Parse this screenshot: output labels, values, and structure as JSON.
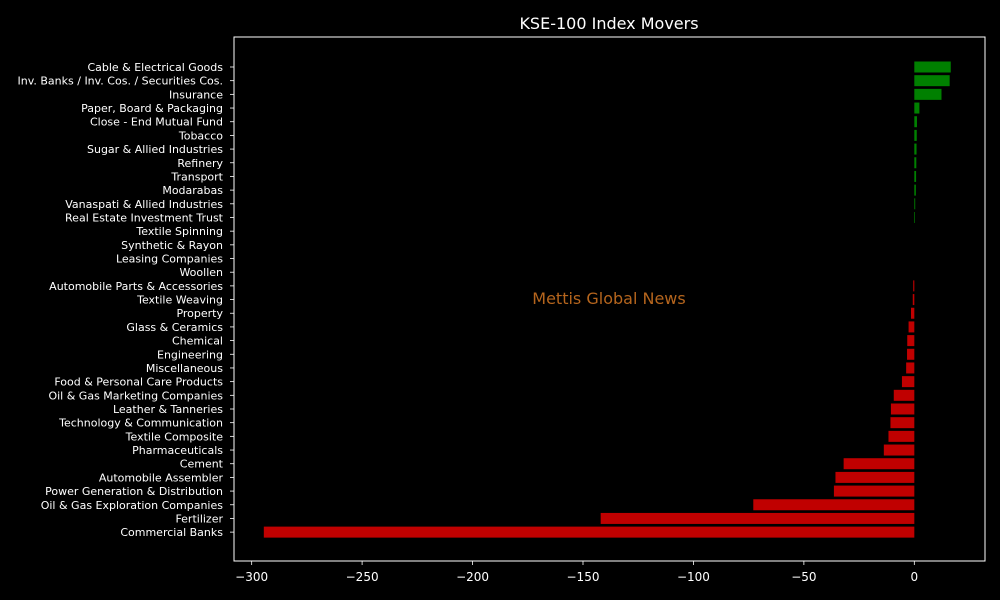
{
  "chart_data": {
    "type": "bar",
    "orientation": "horizontal",
    "title": "KSE-100 Index Movers",
    "watermark": "Mettis Global News",
    "xlim": [
      -308,
      32
    ],
    "xticks": [
      -300,
      -250,
      -200,
      -150,
      -100,
      -50,
      0
    ],
    "xtick_labels": [
      "−300",
      "−250",
      "−200",
      "−150",
      "−100",
      "−50",
      "0"
    ],
    "grid": false,
    "colors": {
      "positive": "#008000",
      "negative": "#c00000",
      "background": "#000000",
      "axes": "#ffffff",
      "watermark": "#b5651d"
    },
    "categories": [
      "Cable & Electrical Goods",
      "Inv. Banks / Inv. Cos. / Securities Cos.",
      "Insurance",
      "Paper, Board & Packaging",
      "Close - End Mutual Fund",
      "Tobacco",
      "Sugar & Allied Industries",
      "Refinery",
      "Transport",
      "Modarabas",
      "Vanaspati & Allied Industries",
      "Real Estate Investment Trust",
      "Textile Spinning",
      "Synthetic & Rayon",
      "Leasing Companies",
      "Woollen",
      "Automobile Parts & Accessories",
      "Textile Weaving",
      "Property",
      "Glass & Ceramics",
      "Chemical",
      "Engineering",
      "Miscellaneous",
      "Food & Personal Care Products",
      "Oil & Gas Marketing Companies",
      "Leather & Tanneries",
      "Technology & Communication",
      "Textile Composite",
      "Pharmaceuticals",
      "Cement",
      "Automobile Assembler",
      "Power Generation & Distribution",
      "Oil & Gas Exploration Companies",
      "Fertilizer",
      "Commercial Banks"
    ],
    "values": [
      16.5,
      16.0,
      12.3,
      2.3,
      1.2,
      1.1,
      1.0,
      0.9,
      0.8,
      0.7,
      0.4,
      0.3,
      0,
      0,
      0,
      0,
      -0.5,
      -0.7,
      -1.5,
      -2.6,
      -3.2,
      -3.3,
      -3.7,
      -5.6,
      -9.3,
      -10.6,
      -10.8,
      -11.7,
      -13.8,
      -32.0,
      -35.7,
      -36.4,
      -72.9,
      -142.0,
      -294.5
    ]
  }
}
